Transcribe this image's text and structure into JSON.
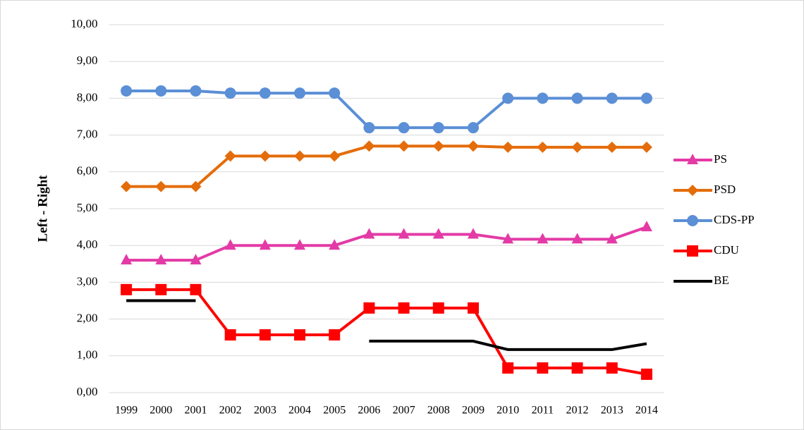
{
  "chart_data": {
    "type": "line",
    "y_label": "Left - Right",
    "categories": [
      "1999",
      "2000",
      "2001",
      "2002",
      "2003",
      "2004",
      "2005",
      "2006",
      "2007",
      "2008",
      "2009",
      "2010",
      "2011",
      "2012",
      "2013",
      "2014"
    ],
    "series": [
      {
        "name": "PS",
        "color": "#e33aa6",
        "marker": "triangle",
        "values": [
          3.6,
          3.6,
          3.6,
          4.0,
          4.0,
          4.0,
          4.0,
          4.3,
          4.3,
          4.3,
          4.3,
          4.17,
          4.17,
          4.17,
          4.17,
          4.5
        ]
      },
      {
        "name": "PSD",
        "color": "#e46c0a",
        "marker": "diamond",
        "values": [
          5.6,
          5.6,
          5.6,
          6.43,
          6.43,
          6.43,
          6.43,
          6.7,
          6.7,
          6.7,
          6.7,
          6.67,
          6.67,
          6.67,
          6.67,
          6.67
        ]
      },
      {
        "name": "CDS-PP",
        "color": "#5b8fd6",
        "marker": "circle",
        "values": [
          8.2,
          8.2,
          8.2,
          8.14,
          8.14,
          8.14,
          8.14,
          7.2,
          7.2,
          7.2,
          7.2,
          8.0,
          8.0,
          8.0,
          8.0,
          8.0
        ]
      },
      {
        "name": "CDU",
        "color": "#ff0000",
        "marker": "square",
        "values": [
          2.8,
          2.8,
          2.8,
          1.57,
          1.57,
          1.57,
          1.57,
          2.3,
          2.3,
          2.3,
          2.3,
          0.67,
          0.67,
          0.67,
          0.67,
          0.5
        ]
      },
      {
        "name": "BE",
        "color": "#000000",
        "marker": "none",
        "values": [
          2.5,
          2.5,
          2.5,
          null,
          null,
          null,
          null,
          1.4,
          1.4,
          1.4,
          1.4,
          1.17,
          1.17,
          1.17,
          1.17,
          1.33
        ]
      }
    ],
    "ylim": [
      0,
      10
    ],
    "yticks": [
      {
        "value": 0,
        "label": "0,00"
      },
      {
        "value": 1,
        "label": "1,00"
      },
      {
        "value": 2,
        "label": "2,00"
      },
      {
        "value": 3,
        "label": "3,00"
      },
      {
        "value": 4,
        "label": "4,00"
      },
      {
        "value": 5,
        "label": "5,00"
      },
      {
        "value": 6,
        "label": "6,00"
      },
      {
        "value": 7,
        "label": "7,00"
      },
      {
        "value": 8,
        "label": "8,00"
      },
      {
        "value": 9,
        "label": "9,00"
      },
      {
        "value": 10,
        "label": "10,00"
      }
    ],
    "grid": true,
    "legend": "right"
  }
}
